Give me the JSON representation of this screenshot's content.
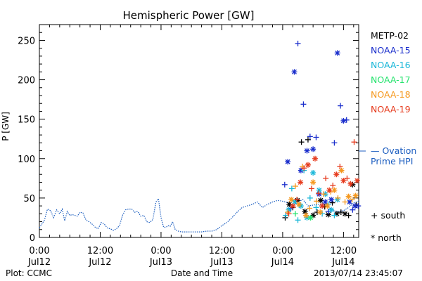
{
  "chart_data": {
    "type": "scatter",
    "title": "Hemispheric Power [GW]",
    "ylabel": "P [GW]",
    "xlabel": "Date and Time",
    "ylim": [
      0,
      270
    ],
    "yticks": [
      0,
      50,
      100,
      150,
      200,
      250
    ],
    "xlim_hours": [
      0,
      63
    ],
    "xtick_labels": [
      {
        "hour": 0,
        "time": "0:00",
        "date": "Jul12"
      },
      {
        "hour": 12,
        "time": "12:00",
        "date": "Jul12"
      },
      {
        "hour": 24,
        "time": "0:00",
        "date": "Jul13"
      },
      {
        "hour": 36,
        "time": "12:00",
        "date": "Jul13"
      },
      {
        "hour": 48,
        "time": "0:00",
        "date": "Jul14"
      },
      {
        "hour": 60,
        "time": "12:00",
        "date": "Jul14"
      }
    ],
    "legend": {
      "placement": "right",
      "entries": [
        {
          "name": "METP-02",
          "color": "#000000"
        },
        {
          "name": "NOAA-15",
          "color": "#1a2ecc"
        },
        {
          "name": "NOAA-16",
          "color": "#19b7d9"
        },
        {
          "name": "NOAA-17",
          "color": "#26e36e"
        },
        {
          "name": "NOAA-18",
          "color": "#f5981e"
        },
        {
          "name": "NOAA-19",
          "color": "#e63a1c"
        }
      ],
      "ovation_label_1": "— Ovation",
      "ovation_label_2": "Prime HPI",
      "ovation_color": "#1c5ec0",
      "south_label": "+ south",
      "north_label": "* north"
    },
    "footer": {
      "left": "Plot: CCMC",
      "right": "2013/07/14 23:45:07"
    },
    "ovation_series": {
      "name": "Ovation Prime HPI",
      "color": "#1c5ec0",
      "x": [
        0.0,
        0.5,
        1.0,
        1.6,
        2.2,
        2.8,
        3.4,
        4.0,
        4.5,
        5.0,
        5.5,
        6.0,
        6.5,
        7.0,
        7.5,
        8.0,
        8.6,
        9.2,
        9.8,
        10.4,
        11.0,
        11.6,
        12.2,
        12.8,
        13.4,
        14.0,
        14.6,
        15.2,
        15.8,
        16.4,
        17.0,
        17.6,
        18.2,
        18.8,
        19.4,
        20.0,
        20.6,
        21.2,
        21.8,
        22.4,
        23.0,
        23.5,
        24.0,
        24.5,
        25.0,
        25.4,
        25.8,
        26.3,
        26.8,
        27.4,
        28.0,
        29.0,
        30.0,
        31.0,
        32.0,
        33.0,
        34.0,
        35.0,
        36.0,
        37.0,
        38.0,
        39.0,
        40.0,
        41.0,
        42.0,
        43.0,
        44.0,
        45.0,
        46.0,
        47.0,
        48.0,
        49.0,
        50.0,
        51.0,
        52.0,
        53.0,
        54.0,
        55.0,
        56.0,
        57.0,
        58.0,
        59.0,
        60.0,
        61.0,
        62.0,
        63.0
      ],
      "y": [
        12,
        17,
        22,
        36,
        34,
        25,
        35,
        30,
        36,
        21,
        33,
        28,
        29,
        28,
        27,
        32,
        31,
        22,
        20,
        17,
        13,
        11,
        19,
        17,
        12,
        11,
        9,
        11,
        15,
        28,
        35,
        36,
        36,
        32,
        33,
        27,
        28,
        20,
        19,
        23,
        45,
        49,
        25,
        13,
        13,
        15,
        14,
        20,
        10,
        8,
        7,
        7,
        7,
        7,
        7,
        8,
        8,
        10,
        15,
        19,
        25,
        32,
        38,
        40,
        42,
        45,
        38,
        42,
        45,
        47,
        46,
        44,
        40,
        45,
        48,
        40,
        41,
        42,
        41,
        39,
        34,
        33,
        34,
        38,
        44,
        46
      ]
    },
    "series": [
      {
        "name": "METP-02",
        "color": "#000000",
        "x": [
          48.5,
          49.3,
          50.0,
          50.9,
          51.7,
          52.4,
          53.0,
          54.0,
          54.8,
          55.5,
          56.3,
          57.0,
          57.8,
          58.7,
          59.5,
          60.3,
          61.0,
          61.8,
          62.5
        ],
        "y": [
          25,
          42,
          38,
          47,
          121,
          33,
          124,
          28,
          32,
          47,
          39,
          29,
          44,
          30,
          32,
          30,
          28,
          67,
          41
        ]
      },
      {
        "name": "NOAA-15",
        "color": "#1a2ecc",
        "x": [
          48.4,
          49.0,
          49.6,
          50.3,
          51.0,
          51.6,
          52.1,
          52.8,
          53.4,
          54.0,
          54.6,
          55.2,
          55.8,
          56.4,
          57.0,
          57.6,
          58.2,
          58.8,
          59.4,
          60.0,
          60.6,
          61.2,
          61.8,
          62.3,
          62.9
        ],
        "y": [
          67,
          96,
          37,
          210,
          246,
          85,
          169,
          110,
          128,
          112,
          127,
          55,
          40,
          45,
          33,
          48,
          120,
          234,
          167,
          148,
          149,
          45,
          35,
          40,
          40
        ]
      },
      {
        "name": "NOAA-16",
        "color": "#19b7d9",
        "x": [
          48.6,
          49.2,
          49.8,
          50.4,
          51.0,
          51.6,
          52.2,
          52.8,
          53.4,
          54.0,
          54.6,
          55.2,
          55.8,
          56.4,
          57.0,
          57.6,
          58.2,
          58.8
        ],
        "y": [
          28,
          35,
          62,
          45,
          22,
          40,
          85,
          25,
          50,
          82,
          38,
          60,
          30,
          55,
          42,
          35,
          28,
          48
        ]
      },
      {
        "name": "NOAA-17",
        "color": "#26e36e",
        "x": [
          50.5,
          53.5
        ],
        "y": [
          30,
          25
        ]
      },
      {
        "name": "NOAA-18",
        "color": "#f5981e",
        "x": [
          49.0,
          49.7,
          50.5,
          51.2,
          51.9,
          52.6,
          53.3,
          54.0,
          54.7,
          55.4,
          56.1,
          56.8,
          57.5,
          58.2,
          58.9,
          59.6,
          60.3,
          61.0,
          61.7,
          62.4
        ],
        "y": [
          32,
          48,
          65,
          42,
          90,
          28,
          37,
          70,
          46,
          32,
          55,
          40,
          58,
          60,
          50,
          85,
          45,
          52,
          48,
          53
        ]
      },
      {
        "name": "NOAA-19",
        "color": "#e63a1c",
        "x": [
          49.2,
          50.0,
          50.8,
          51.5,
          52.2,
          53.0,
          53.7,
          54.4,
          55.1,
          55.8,
          56.5,
          57.2,
          57.9,
          58.6,
          59.3,
          60.0,
          60.7,
          61.4,
          62.1,
          62.7
        ],
        "y": [
          30,
          40,
          48,
          70,
          88,
          92,
          62,
          100,
          56,
          40,
          75,
          60,
          66,
          80,
          90,
          72,
          75,
          68,
          121,
          72
        ]
      }
    ]
  }
}
